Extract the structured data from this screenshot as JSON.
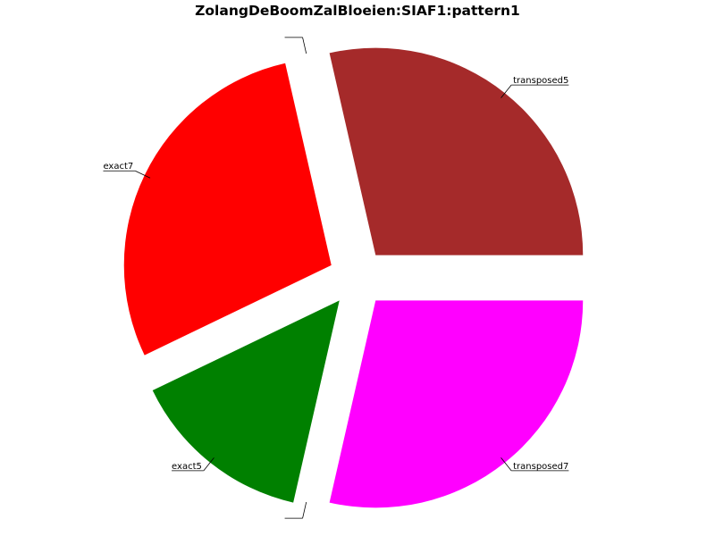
{
  "chart_data": {
    "type": "pie",
    "title": "ZolangDeBoomZalBloeien:SIAF1:pattern1",
    "slices": [
      {
        "label": "transposed5",
        "value": 2,
        "color": "#a52a2a"
      },
      {
        "label": "",
        "value": 0,
        "color": "#ffffff"
      },
      {
        "label": "exact7",
        "value": 2,
        "color": "#ff0000"
      },
      {
        "label": "exact5",
        "value": 1,
        "color": "#008000"
      },
      {
        "label": "",
        "value": 0,
        "color": "#ffffff"
      },
      {
        "label": "transposed7",
        "value": 2,
        "color": "#ff00ff"
      }
    ],
    "start_angle_deg": 0,
    "direction": "counterclockwise",
    "exploded": true,
    "legend": "none"
  }
}
